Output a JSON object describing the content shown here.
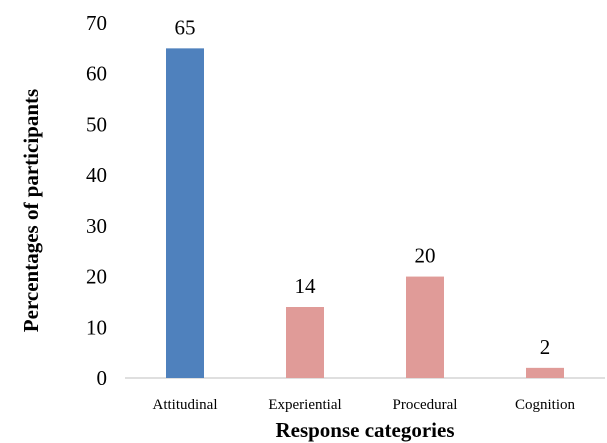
{
  "chart_data": {
    "type": "bar",
    "categories": [
      "Attitudinal",
      "Experiential",
      "Procedural",
      "Cognition"
    ],
    "values": [
      65,
      14,
      20,
      2
    ],
    "data_labels": [
      "65",
      "14",
      "20",
      "2"
    ],
    "bar_colors": [
      "#4f81bd",
      "#e09b98",
      "#e09b98",
      "#e09b98"
    ],
    "title": "",
    "xlabel": "Response categories",
    "ylabel": "Percentages of participants",
    "ylim": [
      0,
      70
    ],
    "yticks": [
      "0",
      "10",
      "20",
      "30",
      "40",
      "50",
      "60",
      "70"
    ],
    "grid": false,
    "legend": "none"
  }
}
